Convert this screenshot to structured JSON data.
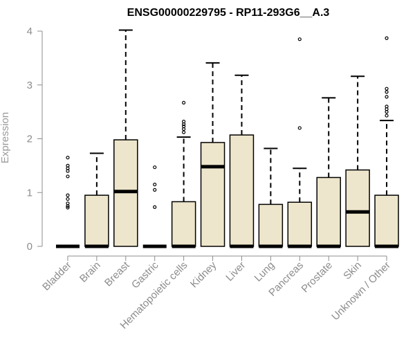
{
  "chart_data": {
    "type": "boxplot",
    "title": "ENSG00000229795 - RP11-293G6__A.3",
    "xlabel": "",
    "ylabel": "Expression",
    "ylim": [
      0,
      4
    ],
    "yticks": [
      0,
      1,
      2,
      3,
      4
    ],
    "grid": false,
    "legend": "none",
    "box_fill": "#ede6cc",
    "box_stroke": "#000000",
    "axis_color": "#8c8c8c",
    "categories": [
      "Bladder",
      "Brain",
      "Breast",
      "Gastric",
      "Hematopoietic cells",
      "Kidney",
      "Liver",
      "Lung",
      "Pancreas",
      "Prostate",
      "Skin",
      "Unknown / Other"
    ],
    "boxes": [
      {
        "category": "Bladder",
        "q1": 0,
        "median": 0,
        "q3": 0,
        "whisker_low": 0,
        "whisker_high": 0,
        "outliers": [
          1.65,
          1.5,
          1.45,
          1.4,
          1.3,
          0.95,
          0.88,
          0.8,
          0.75,
          0.72
        ]
      },
      {
        "category": "Brain",
        "q1": 0,
        "median": 0,
        "q3": 0.95,
        "whisker_low": 0,
        "whisker_high": 1.73,
        "outliers": []
      },
      {
        "category": "Breast",
        "q1": 0,
        "median": 1.02,
        "q3": 1.98,
        "whisker_low": 0,
        "whisker_high": 4.02,
        "outliers": []
      },
      {
        "category": "Gastric",
        "q1": 0,
        "median": 0,
        "q3": 0,
        "whisker_low": 0,
        "whisker_high": 0,
        "outliers": [
          1.47,
          1.15,
          1.05,
          0.73
        ]
      },
      {
        "category": "Hematopoietic cells",
        "q1": 0,
        "median": 0,
        "q3": 0.83,
        "whisker_low": 0,
        "whisker_high": 2.03,
        "outliers": [
          2.67,
          2.32,
          2.27,
          2.23,
          2.18,
          2.12
        ]
      },
      {
        "category": "Kidney",
        "q1": 0,
        "median": 1.48,
        "q3": 1.93,
        "whisker_low": 0,
        "whisker_high": 3.41,
        "outliers": []
      },
      {
        "category": "Liver",
        "q1": 0,
        "median": 0,
        "q3": 2.07,
        "whisker_low": 0,
        "whisker_high": 3.18,
        "outliers": []
      },
      {
        "category": "Lung",
        "q1": 0,
        "median": 0,
        "q3": 0.78,
        "whisker_low": 0,
        "whisker_high": 1.82,
        "outliers": []
      },
      {
        "category": "Pancreas",
        "q1": 0,
        "median": 0,
        "q3": 0.82,
        "whisker_low": 0,
        "whisker_high": 1.45,
        "outliers": [
          3.85,
          2.2
        ]
      },
      {
        "category": "Prostate",
        "q1": 0,
        "median": 0,
        "q3": 1.28,
        "whisker_low": 0,
        "whisker_high": 2.76,
        "outliers": []
      },
      {
        "category": "Skin",
        "q1": 0,
        "median": 0.64,
        "q3": 1.42,
        "whisker_low": 0,
        "whisker_high": 3.16,
        "outliers": []
      },
      {
        "category": "Unknown / Other",
        "q1": 0,
        "median": 0,
        "q3": 0.95,
        "whisker_low": 0,
        "whisker_high": 2.34,
        "outliers": [
          3.87,
          2.93,
          2.87,
          2.78,
          2.6,
          2.55,
          2.5,
          2.43
        ]
      }
    ]
  }
}
